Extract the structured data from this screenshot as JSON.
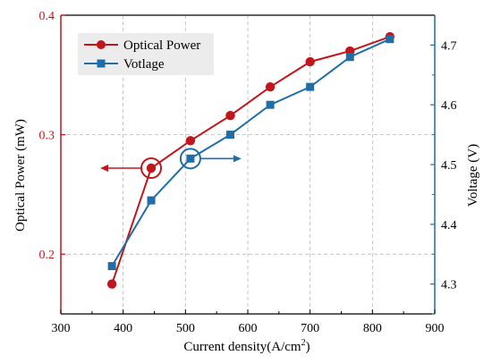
{
  "chart_data": {
    "type": "line",
    "xlabel": "Current density(A/cm",
    "xlabel_sup": "2",
    "xlabel_end": ")",
    "ylabel_left": "Optical Power (mW)",
    "ylabel_right": "Voltage (V)",
    "xlim": [
      300,
      900
    ],
    "ylim_left": [
      0.15,
      0.4
    ],
    "ylim_right": [
      4.25,
      4.75
    ],
    "x_ticks": [
      300,
      400,
      500,
      600,
      700,
      800,
      900
    ],
    "y_left_ticks": [
      0.2,
      0.3,
      0.4
    ],
    "y_right_ticks": [
      4.3,
      4.4,
      4.5,
      4.6,
      4.7
    ],
    "grid": true,
    "legend_position": "top-left",
    "series": [
      {
        "name": "Optical Power",
        "axis": "left",
        "color": "#c0161c",
        "marker": "circle",
        "x": [
          382,
          445,
          508,
          572,
          636,
          700,
          764,
          828
        ],
        "y": [
          0.175,
          0.272,
          0.295,
          0.316,
          0.34,
          0.361,
          0.37,
          0.382
        ]
      },
      {
        "name": "Votlage",
        "axis": "right",
        "color": "#1f6ea8",
        "marker": "square",
        "x": [
          382,
          445,
          508,
          572,
          636,
          700,
          764,
          828
        ],
        "y": [
          4.33,
          4.44,
          4.51,
          4.55,
          4.6,
          4.63,
          4.68,
          4.71
        ]
      }
    ],
    "annotations": [
      {
        "series": 0,
        "point": 1,
        "arrow": "left"
      },
      {
        "series": 1,
        "point": 2,
        "arrow": "right"
      }
    ]
  }
}
